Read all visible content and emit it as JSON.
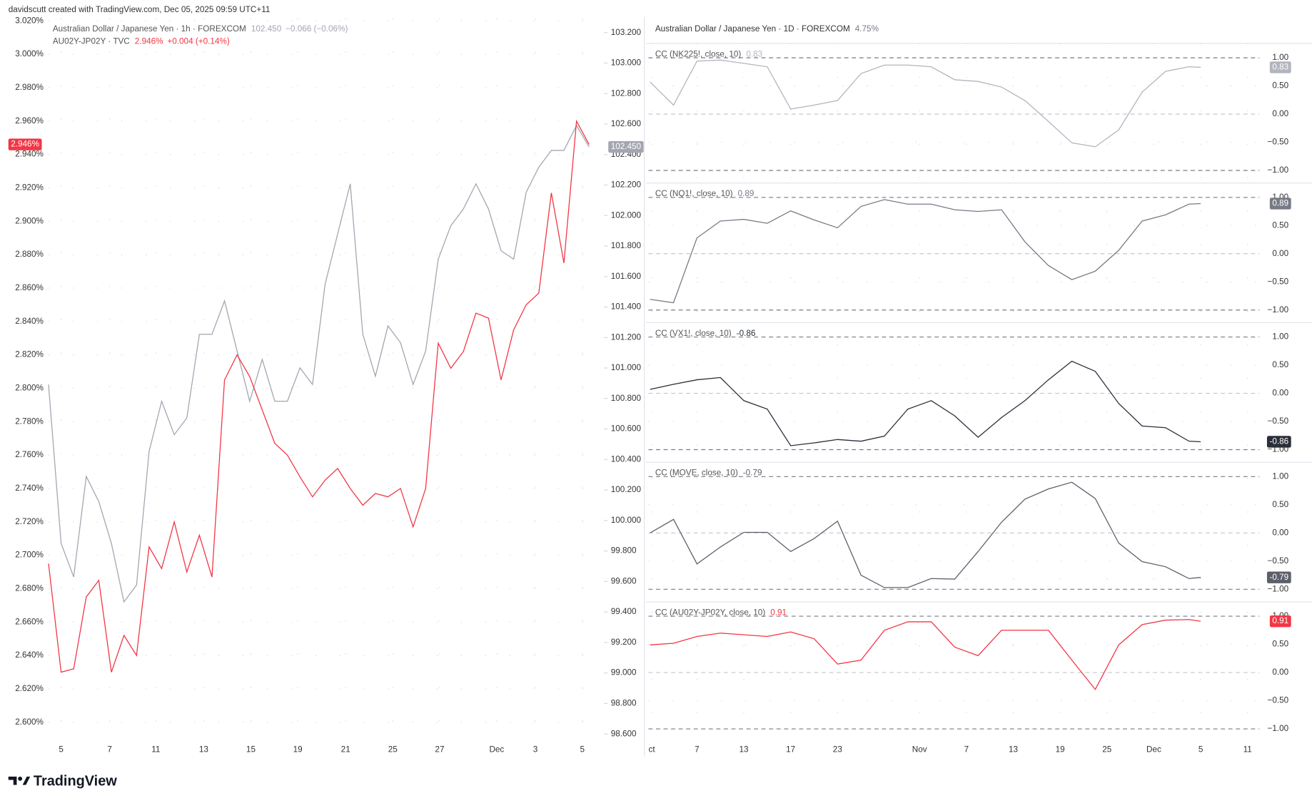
{
  "header": "davidscutt created with TradingView.com, Dec 05, 2025 09:59 UTC+11",
  "logo": "TradingView",
  "chart_data": [
    {
      "type": "line",
      "x": [
        -0.52,
        0,
        0.52,
        1.04,
        1.56,
        2.08,
        2.6,
        3.12,
        3.64,
        4.16,
        4.68,
        5.2,
        5.72,
        6.24,
        6.76,
        7.28,
        7.8,
        8.32,
        8.84,
        9.36,
        9.88,
        10.4,
        10.92,
        11.44,
        11.96,
        12.48,
        13,
        13.52,
        14.04,
        14.56,
        15.08,
        15.6,
        16.12,
        16.64,
        17.16,
        17.68,
        18.2,
        18.72,
        19.24,
        19.76,
        20.28,
        20.8,
        21.32,
        21.84
      ],
      "xlim": [
        -0.52,
        22.22
      ],
      "xticks": [
        {
          "value": 0,
          "label": "5"
        },
        {
          "value": 2.01,
          "label": "7"
        },
        {
          "value": 3.92,
          "label": "11"
        },
        {
          "value": 5.9,
          "label": "13"
        },
        {
          "value": 7.85,
          "label": "15"
        },
        {
          "value": 9.79,
          "label": "19"
        },
        {
          "value": 11.77,
          "label": "21"
        },
        {
          "value": 13.72,
          "label": "25"
        },
        {
          "value": 15.66,
          "label": "27"
        },
        {
          "value": 18.02,
          "label": "Dec"
        },
        {
          "value": 19.62,
          "label": "3"
        },
        {
          "value": 21.56,
          "label": "5"
        }
      ],
      "ylim": [
        2.592,
        3.0215
      ],
      "yticks": [
        {
          "value": 2.6,
          "label": "2.600%"
        },
        {
          "value": 2.62,
          "label": "2.620%"
        },
        {
          "value": 2.64,
          "label": "2.640%"
        },
        {
          "value": 2.66,
          "label": "2.660%"
        },
        {
          "value": 2.68,
          "label": "2.680%"
        },
        {
          "value": 2.7,
          "label": "2.700%"
        },
        {
          "value": 2.72,
          "label": "2.720%"
        },
        {
          "value": 2.74,
          "label": "2.740%"
        },
        {
          "value": 2.76,
          "label": "2.760%"
        },
        {
          "value": 2.78,
          "label": "2.780%"
        },
        {
          "value": 2.8,
          "label": "2.800%"
        },
        {
          "value": 2.82,
          "label": "2.820%"
        },
        {
          "value": 2.84,
          "label": "2.840%"
        },
        {
          "value": 2.86,
          "label": "2.860%"
        },
        {
          "value": 2.88,
          "label": "2.880%"
        },
        {
          "value": 2.9,
          "label": "2.900%"
        },
        {
          "value": 2.92,
          "label": "2.920%"
        },
        {
          "value": 2.94,
          "label": "2.940%"
        },
        {
          "value": 2.96,
          "label": "2.960%"
        },
        {
          "value": 2.98,
          "label": "2.980%"
        },
        {
          "value": 3.0,
          "label": "3.000%"
        },
        {
          "value": 3.02,
          "label": "3.020%"
        }
      ],
      "y2lim": [
        98.589,
        103.293
      ],
      "y2ticks": [
        {
          "value": 98.6,
          "label": "98.600"
        },
        {
          "value": 98.8,
          "label": "98.800"
        },
        {
          "value": 99.0,
          "label": "99.000"
        },
        {
          "value": 99.2,
          "label": "99.200"
        },
        {
          "value": 99.4,
          "label": "99.400"
        },
        {
          "value": 99.6,
          "label": "99.600"
        },
        {
          "value": 99.8,
          "label": "99.800"
        },
        {
          "value": 100.0,
          "label": "100.000"
        },
        {
          "value": 100.2,
          "label": "100.200"
        },
        {
          "value": 100.4,
          "label": "100.400"
        },
        {
          "value": 100.6,
          "label": "100.600"
        },
        {
          "value": 100.8,
          "label": "100.800"
        },
        {
          "value": 101.0,
          "label": "101.000"
        },
        {
          "value": 101.2,
          "label": "101.200"
        },
        {
          "value": 101.4,
          "label": "101.400"
        },
        {
          "value": 101.6,
          "label": "101.600"
        },
        {
          "value": 101.8,
          "label": "101.800"
        },
        {
          "value": 102.0,
          "label": "102.000"
        },
        {
          "value": 102.2,
          "label": "102.200"
        },
        {
          "value": 102.4,
          "label": "102.400"
        },
        {
          "value": 102.6,
          "label": "102.600"
        },
        {
          "value": 102.8,
          "label": "102.800"
        },
        {
          "value": 103.0,
          "label": "103.000"
        },
        {
          "value": 103.2,
          "label": "103.200"
        }
      ],
      "grid": true,
      "series": [
        {
          "name": "Australian Dollar / Japanese Yen · 1h · FOREXCOM",
          "color": "#a3a6b1",
          "axis": "y2",
          "last": "102.450",
          "change": "−0.066 (−0.06%)",
          "values": [
            100.892,
            99.85,
            99.63,
            100.289,
            100.124,
            99.85,
            99.466,
            99.576,
            100.453,
            100.782,
            100.563,
            100.672,
            101.221,
            101.221,
            101.44,
            101.111,
            100.782,
            101.056,
            100.782,
            100.782,
            101.001,
            100.892,
            101.55,
            101.879,
            102.208,
            101.221,
            100.946,
            101.276,
            101.166,
            100.892,
            101.111,
            101.714,
            101.933,
            102.043,
            102.208,
            102.043,
            101.769,
            101.714,
            102.153,
            102.317,
            102.427,
            102.427,
            102.591,
            102.45
          ]
        },
        {
          "name": "AU02Y-JP02Y · TVC",
          "color": "#f23645",
          "last": "2.946%",
          "change": "+0.004 (+0.14%)",
          "values": [
            2.695,
            2.63,
            2.632,
            2.675,
            2.685,
            2.63,
            2.652,
            2.64,
            2.705,
            2.692,
            2.72,
            2.69,
            2.712,
            2.687,
            2.805,
            2.82,
            2.807,
            2.787,
            2.767,
            2.76,
            2.747,
            2.735,
            2.745,
            2.752,
            2.74,
            2.73,
            2.737,
            2.735,
            2.74,
            2.717,
            2.74,
            2.827,
            2.812,
            2.822,
            2.845,
            2.842,
            2.805,
            2.835,
            2.85,
            2.857,
            2.917,
            2.875,
            2.96,
            2.946
          ]
        }
      ]
    },
    {
      "type": "line",
      "title": "Australian Dollar / Japanese Yen · 1D · FOREXCOM",
      "title_value": "4.75%",
      "x": [
        -4,
        -2,
        0,
        2,
        4,
        6,
        8,
        10,
        12,
        14,
        16,
        18,
        20,
        22,
        24,
        26,
        28,
        30,
        32,
        34,
        36,
        38,
        40,
        42,
        43
      ],
      "xlim": [
        -4.14,
        48
      ],
      "xticks": [
        {
          "value": -3.86,
          "label": "ct"
        },
        {
          "value": 0,
          "label": "7"
        },
        {
          "value": 4,
          "label": "13"
        },
        {
          "value": 8,
          "label": "17"
        },
        {
          "value": 12,
          "label": "23"
        },
        {
          "value": 19,
          "label": "Nov"
        },
        {
          "value": 23,
          "label": "7"
        },
        {
          "value": 27,
          "label": "13"
        },
        {
          "value": 31,
          "label": "19"
        },
        {
          "value": 35,
          "label": "25"
        },
        {
          "value": 39,
          "label": "Dec"
        },
        {
          "value": 43,
          "label": "5"
        },
        {
          "value": 47,
          "label": "11"
        }
      ],
      "grid": true,
      "series": [
        {
          "name": "CC (NK225!, close, 10)",
          "color": "#b2b5be",
          "ylim": [
            -1.224,
            1.254
          ],
          "yticks": [
            {
              "value": 1,
              "label": "1.00"
            },
            {
              "value": 0.5,
              "label": "0.50"
            },
            {
              "value": 0,
              "label": "0.00"
            },
            {
              "value": -0.5,
              "label": "−0.50"
            },
            {
              "value": -1,
              "label": "−1.00"
            }
          ],
          "values": [
            0.57,
            0.16,
            0.94,
            0.96,
            0.9,
            0.84,
            0.09,
            0.16,
            0.24,
            0.72,
            0.87,
            0.87,
            0.84,
            0.61,
            0.58,
            0.48,
            0.24,
            -0.13,
            -0.51,
            -0.58,
            -0.28,
            0.39,
            0.76,
            0.84,
            0.83
          ]
        },
        {
          "name": "CC (NQ1!, close, 10)",
          "color": "#787b86",
          "ylim": [
            -1.224,
            1.254
          ],
          "yticks": [
            {
              "value": 1,
              "label": "1.00"
            },
            {
              "value": 0.5,
              "label": "0.50"
            },
            {
              "value": 0,
              "label": "0.00"
            },
            {
              "value": -0.5,
              "label": "−0.50"
            },
            {
              "value": -1,
              "label": "−1.00"
            }
          ],
          "values": [
            -0.81,
            -0.87,
            0.28,
            0.58,
            0.61,
            0.54,
            0.76,
            0.6,
            0.46,
            0.84,
            0.96,
            0.88,
            0.88,
            0.78,
            0.75,
            0.78,
            0.21,
            -0.21,
            -0.46,
            -0.31,
            0.06,
            0.58,
            0.69,
            0.88,
            0.89
          ]
        },
        {
          "name": "CC (VX1!, close, 10)",
          "color": "#2a2e39",
          "ylim": [
            -1.224,
            1.254
          ],
          "yticks": [
            {
              "value": 1,
              "label": "1.00"
            },
            {
              "value": 0.5,
              "label": "0.50"
            },
            {
              "value": 0,
              "label": "0.00"
            },
            {
              "value": -0.5,
              "label": "−0.50"
            },
            {
              "value": -1,
              "label": "−1.00"
            }
          ],
          "values": [
            0.07,
            0.16,
            0.24,
            0.28,
            -0.13,
            -0.28,
            -0.93,
            -0.88,
            -0.82,
            -0.85,
            -0.76,
            -0.28,
            -0.13,
            -0.4,
            -0.78,
            -0.43,
            -0.13,
            0.24,
            0.57,
            0.39,
            -0.18,
            -0.58,
            -0.61,
            -0.85,
            -0.86
          ]
        },
        {
          "name": "CC (MOVE, close, 10)",
          "color": "#5d606b",
          "ylim": [
            -1.224,
            1.254
          ],
          "yticks": [
            {
              "value": 1,
              "label": "1.00"
            },
            {
              "value": 0.5,
              "label": "0.50"
            },
            {
              "value": 0,
              "label": "0.00"
            },
            {
              "value": -0.5,
              "label": "−0.50"
            },
            {
              "value": -1,
              "label": "−1.00"
            }
          ],
          "values": [
            0,
            0.24,
            -0.55,
            -0.25,
            0.01,
            0.01,
            -0.33,
            -0.1,
            0.21,
            -0.75,
            -0.97,
            -0.97,
            -0.81,
            -0.82,
            -0.33,
            0.19,
            0.6,
            0.78,
            0.9,
            0.61,
            -0.18,
            -0.51,
            -0.6,
            -0.81,
            -0.79
          ]
        },
        {
          "name": "CC (AU02Y-JP02Y, close, 10)",
          "color": "#f23645",
          "ylim": [
            -1.224,
            1.254
          ],
          "yticks": [
            {
              "value": 1,
              "label": "1.00"
            },
            {
              "value": 0.5,
              "label": "0.50"
            },
            {
              "value": 0,
              "label": "0.00"
            },
            {
              "value": -0.5,
              "label": "−0.50"
            },
            {
              "value": -1,
              "label": "−1.00"
            }
          ],
          "values": [
            0.49,
            0.52,
            0.64,
            0.7,
            0.67,
            0.64,
            0.72,
            0.6,
            0.15,
            0.22,
            0.75,
            0.9,
            0.9,
            0.45,
            0.3,
            0.75,
            0.75,
            0.75,
            0.22,
            -0.3,
            0.49,
            0.85,
            0.93,
            0.94,
            0.91
          ]
        }
      ]
    }
  ]
}
